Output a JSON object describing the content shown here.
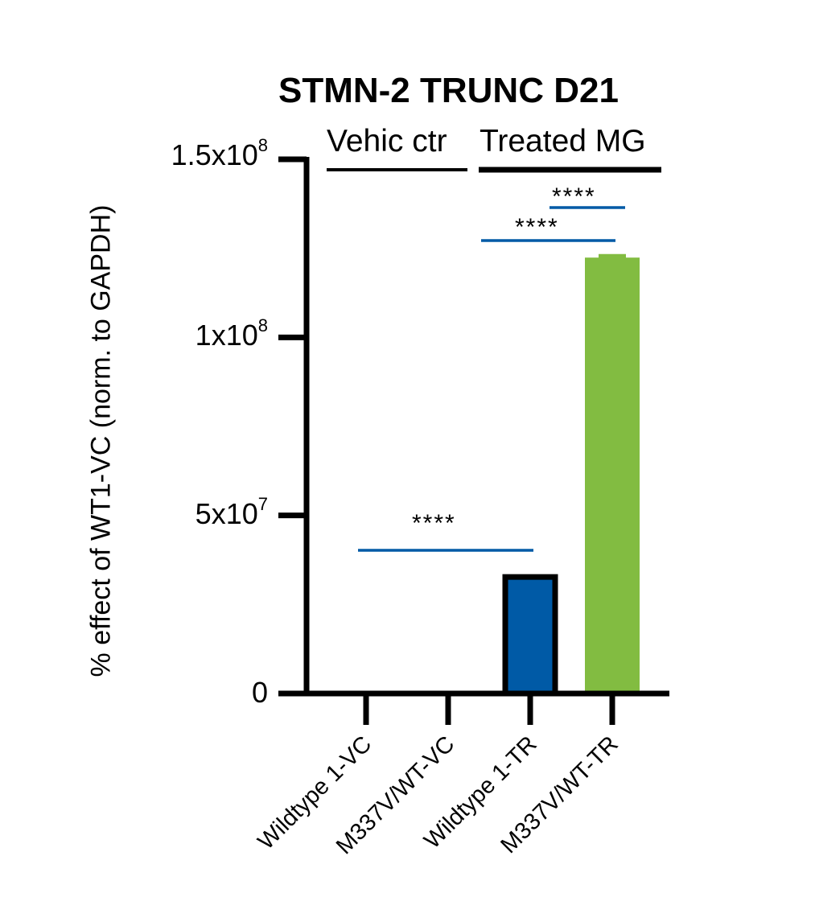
{
  "chart_data": {
    "type": "bar",
    "title": "STMN-2 TRUNC D21",
    "xlabel": "",
    "ylabel": "% effect of WT1-VC (norm. to GAPDH)",
    "ylim": [
      0,
      150000000
    ],
    "yticks": [
      {
        "value": 0,
        "label": "0",
        "exp": ""
      },
      {
        "value": 50000000,
        "label": "5x10",
        "exp": "7"
      },
      {
        "value": 100000000,
        "label": "1x10",
        "exp": "8"
      },
      {
        "value": 150000000,
        "label": "1.5x10",
        "exp": "8"
      }
    ],
    "categories": [
      "Wildtype 1-VC",
      "M337V/WT-VC",
      "Wildtype 1-TR",
      "M337V/WT-TR"
    ],
    "values": [
      0,
      0,
      33400000,
      122400000
    ],
    "errors": [
      0,
      0,
      0,
      1000000
    ],
    "bar_colors": [
      "#ffffff",
      "#ffffff",
      "#005aa6",
      "#82bc41"
    ],
    "bar_outline": [
      true,
      true,
      true,
      false
    ],
    "groups": [
      {
        "label": "Vehic ctr",
        "categories": [
          0,
          1
        ]
      },
      {
        "label": "Treated MG",
        "categories": [
          2,
          3
        ]
      }
    ],
    "significance": [
      {
        "from": 0,
        "to": 2,
        "label": "****",
        "y": 40500000
      },
      {
        "from": 2,
        "to": 3,
        "label": "****",
        "y": 127000000
      },
      {
        "from": 3,
        "to": 3,
        "label": "****",
        "y": 136500000
      }
    ],
    "grid": false,
    "legend": "none"
  },
  "colors": {
    "axis": "#000000",
    "significance_line": "#005aa6",
    "treated_bar_wt": "#005aa6",
    "treated_bar_mut": "#82bc41"
  }
}
